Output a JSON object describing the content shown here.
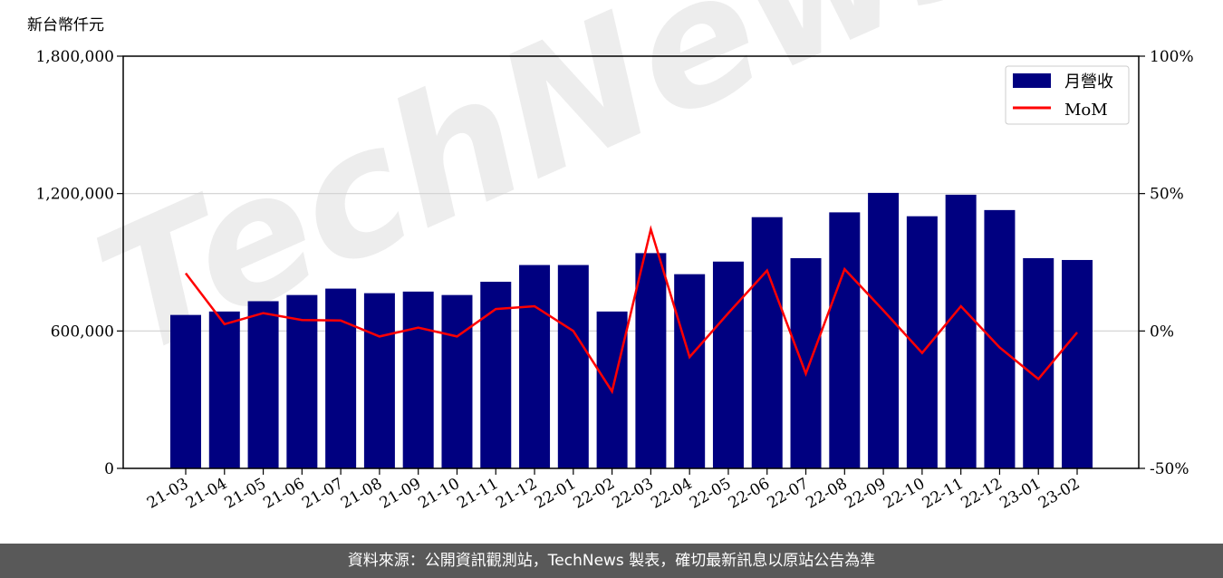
{
  "chart_data": {
    "type": "bar+line",
    "unit_label": "新台幣仟元",
    "categories": [
      "21-03",
      "21-04",
      "21-05",
      "21-06",
      "21-07",
      "21-08",
      "21-09",
      "21-10",
      "21-11",
      "21-12",
      "22-01",
      "22-02",
      "22-03",
      "22-04",
      "22-05",
      "22-06",
      "22-07",
      "22-08",
      "22-09",
      "22-10",
      "22-11",
      "22-12",
      "23-01",
      "23-02"
    ],
    "series": [
      {
        "name": "月營收",
        "type": "bar",
        "axis": "left",
        "color": "#000080",
        "values": [
          670000,
          685000,
          730000,
          757000,
          785000,
          765000,
          772000,
          757000,
          815000,
          888000,
          888000,
          685000,
          940000,
          848000,
          903000,
          1097000,
          918000,
          1118000,
          1203000,
          1101000,
          1195000,
          1128000,
          918000,
          910000
        ]
      },
      {
        "name": "MoM",
        "type": "line",
        "axis": "right",
        "color": "#ff0000",
        "values": [
          21,
          2.5,
          6.5,
          4,
          3.8,
          -2,
          1.2,
          -2,
          8,
          9,
          0,
          -22,
          37,
          -9.5,
          6.5,
          22,
          -15.5,
          22.5,
          7.5,
          -8,
          9,
          -6,
          -17.5,
          -0.5
        ]
      }
    ],
    "left_axis": {
      "min": 0,
      "max": 1800000,
      "ticks": [
        0,
        600000,
        1200000,
        1800000
      ],
      "tick_labels": [
        "0",
        "600,000",
        "1,200,000",
        "1,800,000"
      ]
    },
    "right_axis": {
      "min": -50,
      "max": 100,
      "ticks": [
        -50,
        0,
        50,
        100
      ],
      "tick_labels": [
        "-50%",
        "0%",
        "50%",
        "100%"
      ]
    },
    "grid": "horizontal",
    "legend_position": "top-right"
  },
  "watermark": "TechNews",
  "footer": {
    "text": "資料來源：公開資訊觀測站，TechNews 製表，確切最新訊息以原站公告為準"
  }
}
